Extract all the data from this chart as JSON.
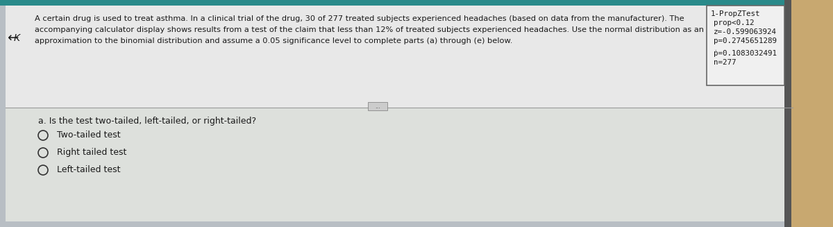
{
  "bg_color": "#b8bec4",
  "top_strip_color": "#2a8a8a",
  "content_bg": "#e8e8e8",
  "bottom_bg": "#d0d8d0",
  "text_color": "#1a1a1a",
  "paragraph_line1": "A certain drug is used to treat asthma. In a clinical trial of the drug, 30 of 277 treated subjects experienced headaches (based on data from the manufacturer). The",
  "paragraph_line2": "accompanying calculator display shows results from a test of the claim that less than 12% of treated subjects experienced headaches. Use the normal distribution as an",
  "paragraph_line3": "approximation to the binomial distribution and assume a 0.05 significance level to complete parts (a) through (e) below.",
  "calculator_title": "1-PropZTest",
  "calculator_lines": [
    "prop<0.12",
    "z=-0.599063924",
    "p=0.2745651289",
    "ṗ=0.1083032491",
    "n=277"
  ],
  "section_label": "a. Is the test two-tailed, left-tailed, or right-tailed?",
  "options": [
    "Two-tailed test",
    "Right tailed test",
    "Left-tailed test"
  ],
  "calc_box_color": "#f0f0f0",
  "calc_border_color": "#666666",
  "font_size_para": 8.2,
  "font_size_calc": 7.8,
  "font_size_options": 9.0,
  "font_size_section": 9.0,
  "right_side_color": "#c8a870"
}
